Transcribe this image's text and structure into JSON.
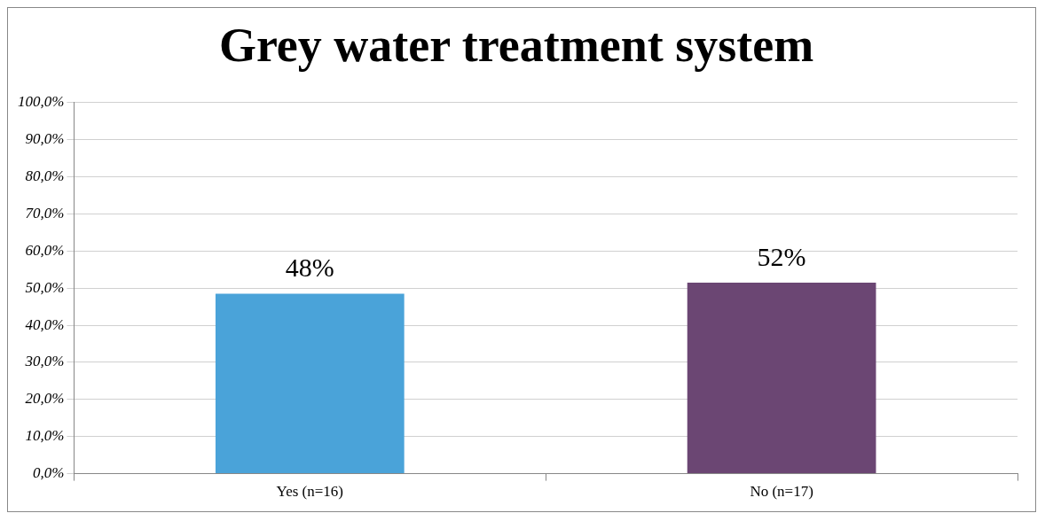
{
  "chart_data": {
    "type": "bar",
    "title": "Grey water treatment system",
    "categories": [
      "Yes (n=16)",
      "No (n=17)"
    ],
    "values": [
      48.5,
      51.5
    ],
    "colors": [
      "#4aa3d9",
      "#6b4673"
    ],
    "value_labels": [
      "48%",
      "52%"
    ],
    "ylim": [
      0,
      100
    ],
    "yticks": [
      {
        "value": 0,
        "label": "0,0%"
      },
      {
        "value": 10,
        "label": "10,0%"
      },
      {
        "value": 20,
        "label": "20,0%"
      },
      {
        "value": 30,
        "label": "30,0%"
      },
      {
        "value": 40,
        "label": "40,0%"
      },
      {
        "value": 50,
        "label": "50,0%"
      },
      {
        "value": 60,
        "label": "60,0%"
      },
      {
        "value": 70,
        "label": "70,0%"
      },
      {
        "value": 80,
        "label": "80,0%"
      },
      {
        "value": 90,
        "label": "90,0%"
      },
      {
        "value": 100,
        "label": "100,0%"
      }
    ],
    "grid": "y",
    "legend": false
  }
}
